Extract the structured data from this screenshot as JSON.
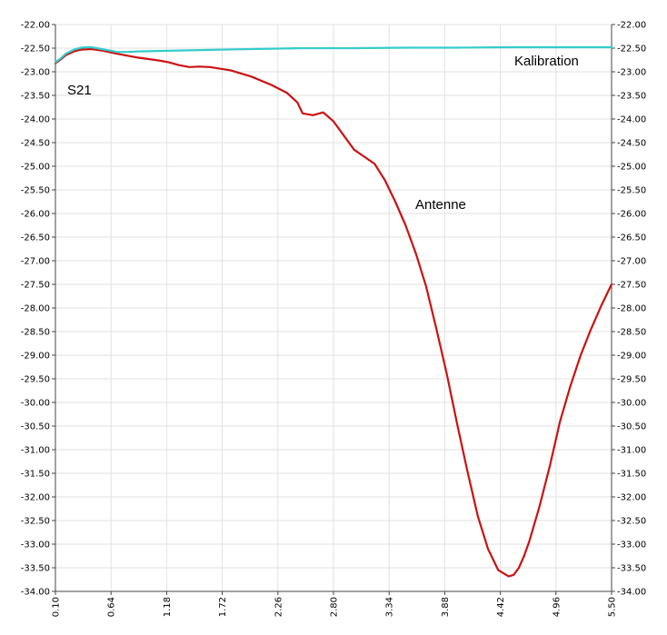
{
  "chart_data": {
    "type": "line",
    "title": "",
    "xlabel": "",
    "ylabel": "",
    "xlim": [
      0.1,
      5.5
    ],
    "ylim": [
      -34.0,
      -22.0
    ],
    "x_ticks": [
      "0.10",
      "0.64",
      "1.18",
      "1.72",
      "2.26",
      "2.80",
      "3.34",
      "3.88",
      "4.42",
      "4.96",
      "5.50"
    ],
    "y_ticks": [
      "-22.00",
      "-22.50",
      "-23.00",
      "-23.50",
      "-24.00",
      "-24.50",
      "-25.00",
      "-25.50",
      "-26.00",
      "-26.50",
      "-27.00",
      "-27.50",
      "-28.00",
      "-28.50",
      "-29.00",
      "-29.50",
      "-30.00",
      "-30.50",
      "-31.00",
      "-31.50",
      "-32.00",
      "-32.50",
      "-33.00",
      "-33.50",
      "-34.00"
    ],
    "grid": true,
    "annotations": [
      "S21",
      "Kalibration",
      "Antenne"
    ],
    "colors": {
      "kalibration": "#33cccc",
      "antenne": "#cc1111",
      "grid": "#e2e2e2",
      "axis": "#444444"
    },
    "series": [
      {
        "name": "Kalibration",
        "color": "#33cccc",
        "x": [
          0.1,
          0.15,
          0.2,
          0.28,
          0.35,
          0.4,
          0.45,
          0.5,
          0.6,
          0.7,
          0.8,
          0.9,
          1.1,
          1.5,
          2.0,
          2.5,
          3.0,
          3.5,
          4.0,
          4.5,
          5.0,
          5.5
        ],
        "y": [
          -22.8,
          -22.72,
          -22.62,
          -22.53,
          -22.49,
          -22.48,
          -22.48,
          -22.5,
          -22.54,
          -22.58,
          -22.58,
          -22.57,
          -22.56,
          -22.54,
          -22.52,
          -22.5,
          -22.5,
          -22.49,
          -22.49,
          -22.48,
          -22.48,
          -22.48
        ]
      },
      {
        "name": "Antenne",
        "color": "#cc1111",
        "x": [
          0.1,
          0.15,
          0.2,
          0.28,
          0.35,
          0.45,
          0.55,
          0.7,
          0.9,
          1.1,
          1.2,
          1.3,
          1.4,
          1.5,
          1.6,
          1.8,
          2.0,
          2.2,
          2.35,
          2.45,
          2.5,
          2.6,
          2.7,
          2.8,
          2.9,
          3.0,
          3.1,
          3.2,
          3.3,
          3.4,
          3.5,
          3.6,
          3.7,
          3.8,
          3.9,
          4.0,
          4.1,
          4.2,
          4.3,
          4.4,
          4.5,
          4.55,
          4.6,
          4.65,
          4.7,
          4.8,
          4.9,
          5.0,
          5.1,
          5.2,
          5.3,
          5.4,
          5.5
        ],
        "y": [
          -22.82,
          -22.74,
          -22.65,
          -22.57,
          -22.53,
          -22.52,
          -22.55,
          -22.62,
          -22.7,
          -22.76,
          -22.8,
          -22.86,
          -22.9,
          -22.89,
          -22.9,
          -22.97,
          -23.1,
          -23.28,
          -23.45,
          -23.65,
          -23.88,
          -23.92,
          -23.86,
          -24.05,
          -24.35,
          -24.65,
          -24.8,
          -24.95,
          -25.3,
          -25.75,
          -26.25,
          -26.85,
          -27.55,
          -28.45,
          -29.4,
          -30.45,
          -31.45,
          -32.4,
          -33.1,
          -33.55,
          -33.68,
          -33.65,
          -33.5,
          -33.25,
          -32.95,
          -32.2,
          -31.35,
          -30.4,
          -29.65,
          -29.0,
          -28.45,
          -27.95,
          -27.5
        ]
      }
    ]
  }
}
